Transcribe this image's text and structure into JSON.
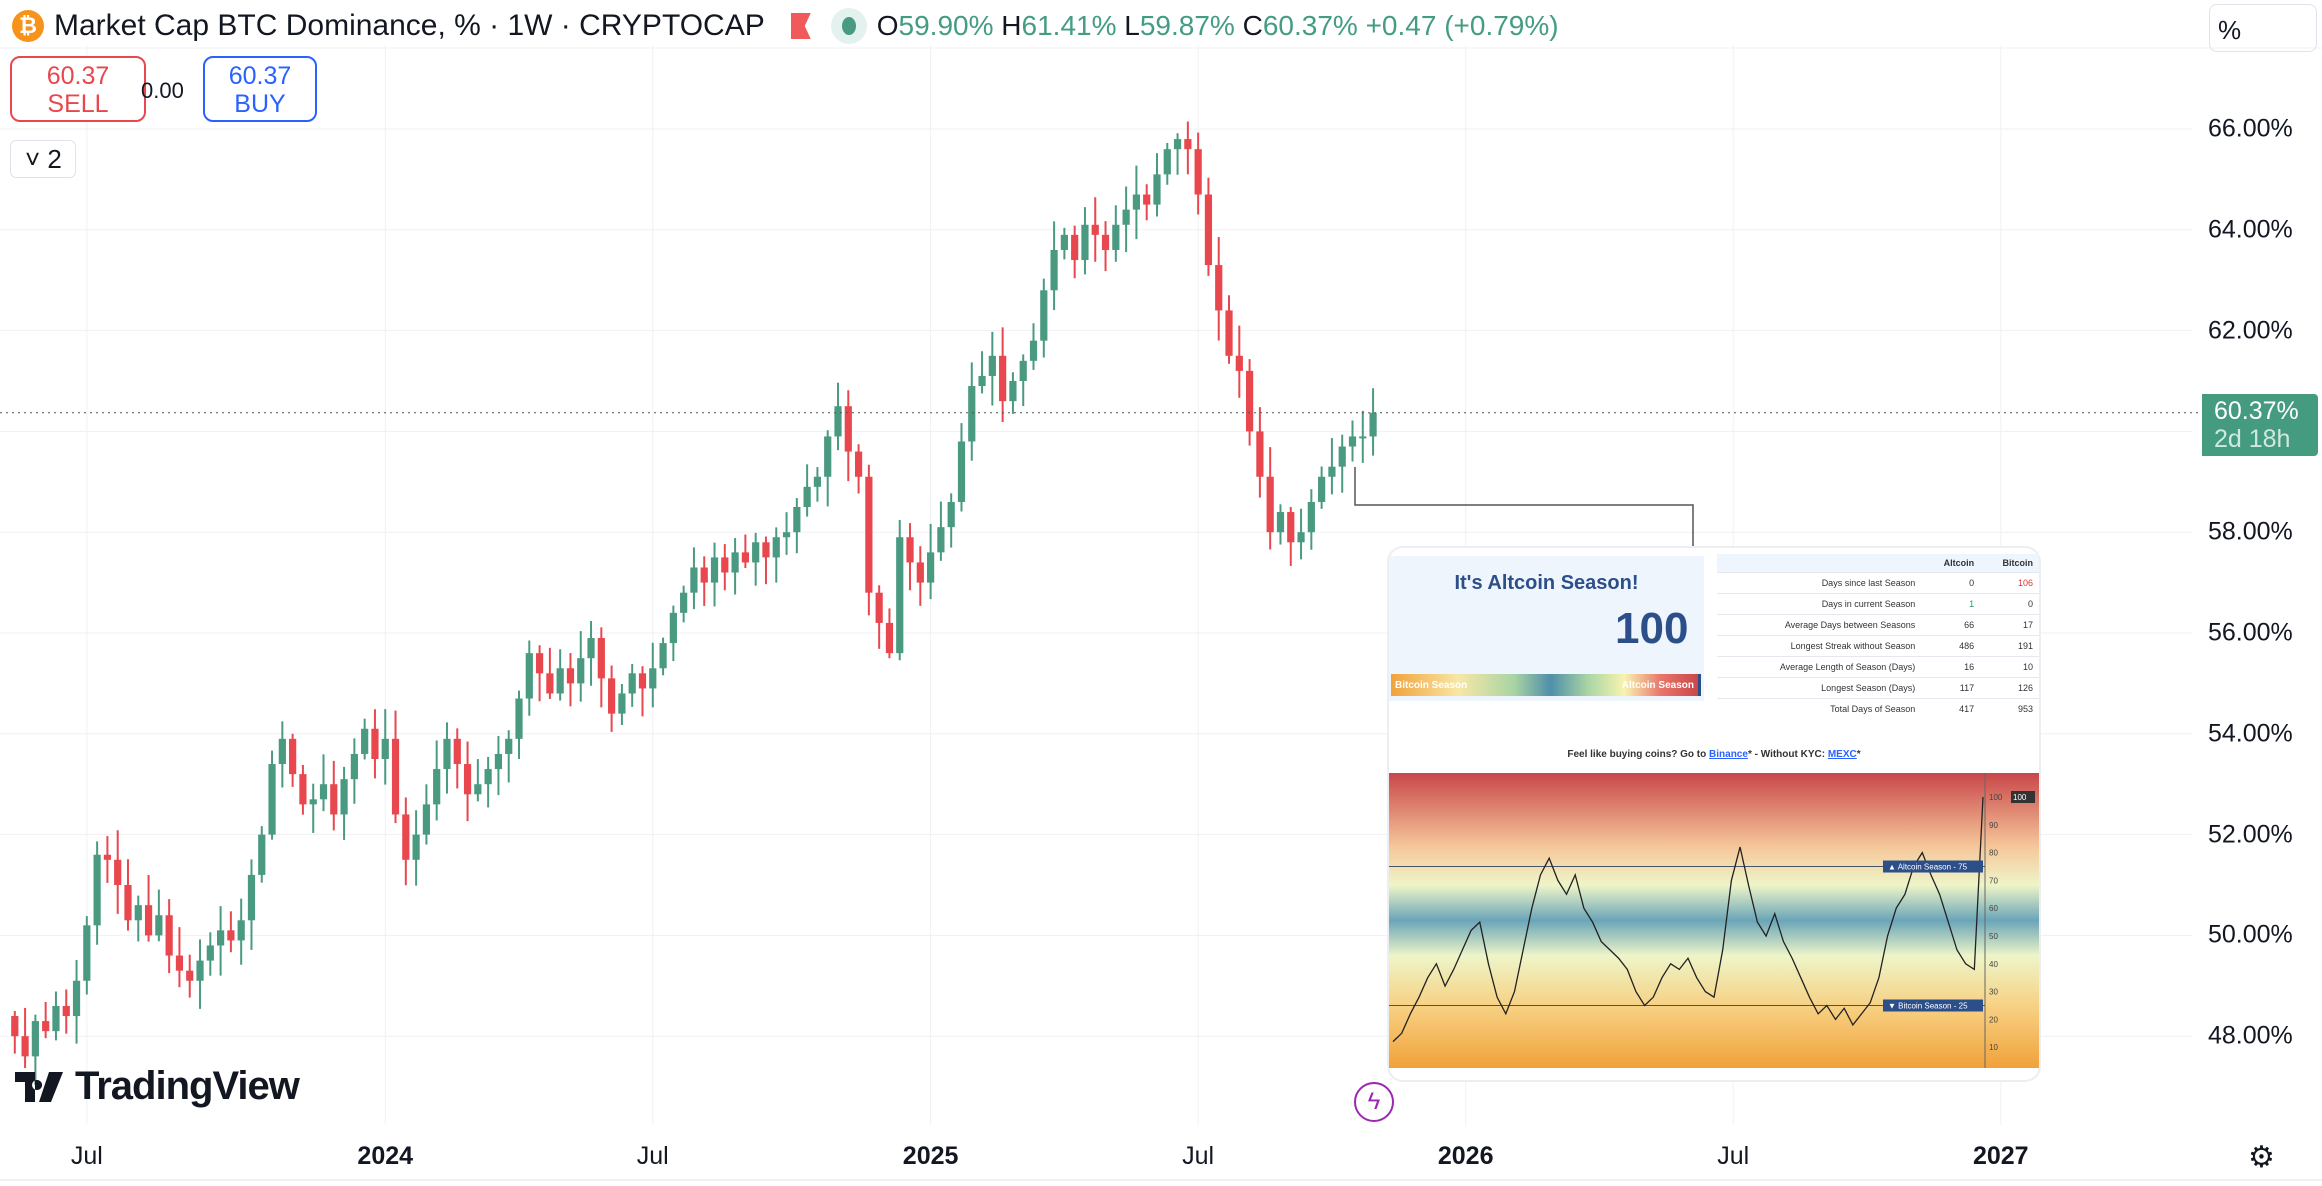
{
  "header": {
    "symbol_title": "Market Cap BTC Dominance, % · 1W · CRYPTOCAP",
    "icon": "bitcoin-icon",
    "o_label": "O",
    "o": "59.90%",
    "h_label": "H",
    "h": "61.41%",
    "l_label": "L",
    "l": "59.87%",
    "c_label": "C",
    "c": "60.37%",
    "change": "+0.47 (+0.79%)"
  },
  "trade": {
    "sell_price": "60.37",
    "sell_label": "SELL",
    "spread": "0.00",
    "buy_price": "60.37",
    "buy_label": "BUY"
  },
  "legend_toggle": "˅ 2",
  "scale_mode": "%",
  "price_tag": {
    "price": "60.37%",
    "countdown": "2d 18h"
  },
  "colors": {
    "up": "#4a9a82",
    "down": "#e8474e",
    "accent": "#2962ff"
  },
  "branding": "TradingView",
  "chart_data": {
    "type": "candlestick",
    "title": "Market Cap BTC Dominance, % · 1W",
    "interval": "1W",
    "ylim": [
      47,
      67
    ],
    "y_ticks": [
      "48.00%",
      "50.00%",
      "52.00%",
      "54.00%",
      "56.00%",
      "58.00%",
      "62.00%",
      "64.00%",
      "66.00%"
    ],
    "y_tick_values": [
      48,
      50,
      52,
      54,
      56,
      58,
      62,
      64,
      66
    ],
    "x_ticks": [
      {
        "label": "Jul",
        "week": 7,
        "bold": false
      },
      {
        "label": "2024",
        "week": 36,
        "bold": true
      },
      {
        "label": "Jul",
        "week": 62,
        "bold": false
      },
      {
        "label": "2025",
        "week": 89,
        "bold": true
      },
      {
        "label": "Jul",
        "week": 115,
        "bold": false
      },
      {
        "label": "2026",
        "week": 141,
        "bold": true
      },
      {
        "label": "Jul",
        "week": 167,
        "bold": false
      },
      {
        "label": "2027",
        "week": 193,
        "bold": true
      }
    ],
    "last_price": 60.37,
    "first_open": 48.4,
    "closes": [
      48.0,
      47.6,
      48.3,
      48.1,
      48.6,
      48.4,
      49.1,
      50.2,
      51.6,
      51.5,
      51.0,
      50.3,
      50.6,
      50.0,
      50.4,
      49.6,
      49.3,
      49.1,
      49.5,
      49.8,
      50.1,
      49.9,
      50.3,
      51.2,
      52.0,
      53.4,
      53.9,
      53.2,
      52.6,
      52.7,
      53.0,
      52.4,
      53.1,
      53.6,
      54.1,
      53.5,
      53.9,
      52.4,
      51.5,
      52.0,
      52.6,
      53.3,
      53.9,
      53.4,
      52.8,
      53.0,
      53.3,
      53.6,
      53.9,
      54.7,
      55.6,
      55.2,
      54.8,
      55.3,
      55.0,
      55.5,
      55.9,
      55.1,
      54.4,
      54.8,
      55.2,
      54.9,
      55.3,
      55.8,
      56.4,
      56.8,
      57.3,
      57.0,
      57.5,
      57.2,
      57.6,
      57.4,
      57.8,
      57.5,
      57.9,
      58.0,
      58.5,
      58.9,
      59.1,
      59.9,
      60.5,
      59.6,
      59.1,
      56.8,
      56.2,
      55.6,
      57.9,
      57.4,
      57.0,
      57.6,
      58.1,
      58.6,
      59.8,
      60.9,
      61.1,
      61.5,
      60.6,
      61.0,
      61.4,
      61.8,
      62.8,
      63.6,
      63.9,
      63.4,
      64.1,
      63.9,
      63.6,
      64.1,
      64.4,
      64.7,
      64.5,
      65.1,
      65.6,
      65.8,
      65.6,
      64.7,
      63.3,
      62.4,
      61.5,
      61.2,
      60.0,
      59.1,
      58.0,
      58.4,
      57.8,
      58.0,
      58.6,
      59.1,
      59.3,
      59.7,
      59.9,
      59.9,
      60.37
    ]
  },
  "inset": {
    "title": "It's Altcoin Season!",
    "index_value": "100",
    "bar_left": "Bitcoin Season",
    "bar_right": "Altcoin Season",
    "table": {
      "headers": [
        "",
        "Altcoin",
        "Bitcoin"
      ],
      "rows": [
        [
          "Days since last Season",
          "0",
          "106"
        ],
        [
          "Days in current Season",
          "1",
          "0"
        ],
        [
          "Average Days between Seasons",
          "66",
          "17"
        ],
        [
          "Longest Streak without Season",
          "486",
          "191"
        ],
        [
          "Average Length of Season (Days)",
          "16",
          "10"
        ],
        [
          "Longest Season (Days)",
          "117",
          "126"
        ],
        [
          "Total Days of Season",
          "417",
          "953"
        ]
      ]
    },
    "promo_prefix": "Feel like buying coins? Go to",
    "promo_link1": "Binance",
    "promo_mid": "- Without KYC:",
    "promo_link2": "MEXC",
    "index_chart": {
      "type": "line",
      "ylim": [
        0,
        100
      ],
      "y_ticks": [
        10,
        20,
        30,
        40,
        50,
        60,
        70,
        80,
        90,
        100
      ],
      "altcoin_line_label": "▲ Altcoin Season - 75",
      "bitcoin_line_label": "▼ Bitcoin Season - 25",
      "last_label": "100",
      "values": [
        12,
        15,
        22,
        28,
        35,
        40,
        32,
        38,
        45,
        52,
        55,
        40,
        28,
        22,
        30,
        45,
        60,
        72,
        78,
        70,
        65,
        72,
        60,
        55,
        48,
        45,
        42,
        38,
        30,
        25,
        28,
        35,
        40,
        38,
        42,
        35,
        30,
        28,
        45,
        70,
        82,
        68,
        55,
        50,
        58,
        48,
        42,
        35,
        28,
        22,
        25,
        20,
        24,
        18,
        22,
        26,
        35,
        50,
        60,
        65,
        75,
        80,
        72,
        65,
        55,
        45,
        40,
        38,
        100
      ]
    }
  }
}
